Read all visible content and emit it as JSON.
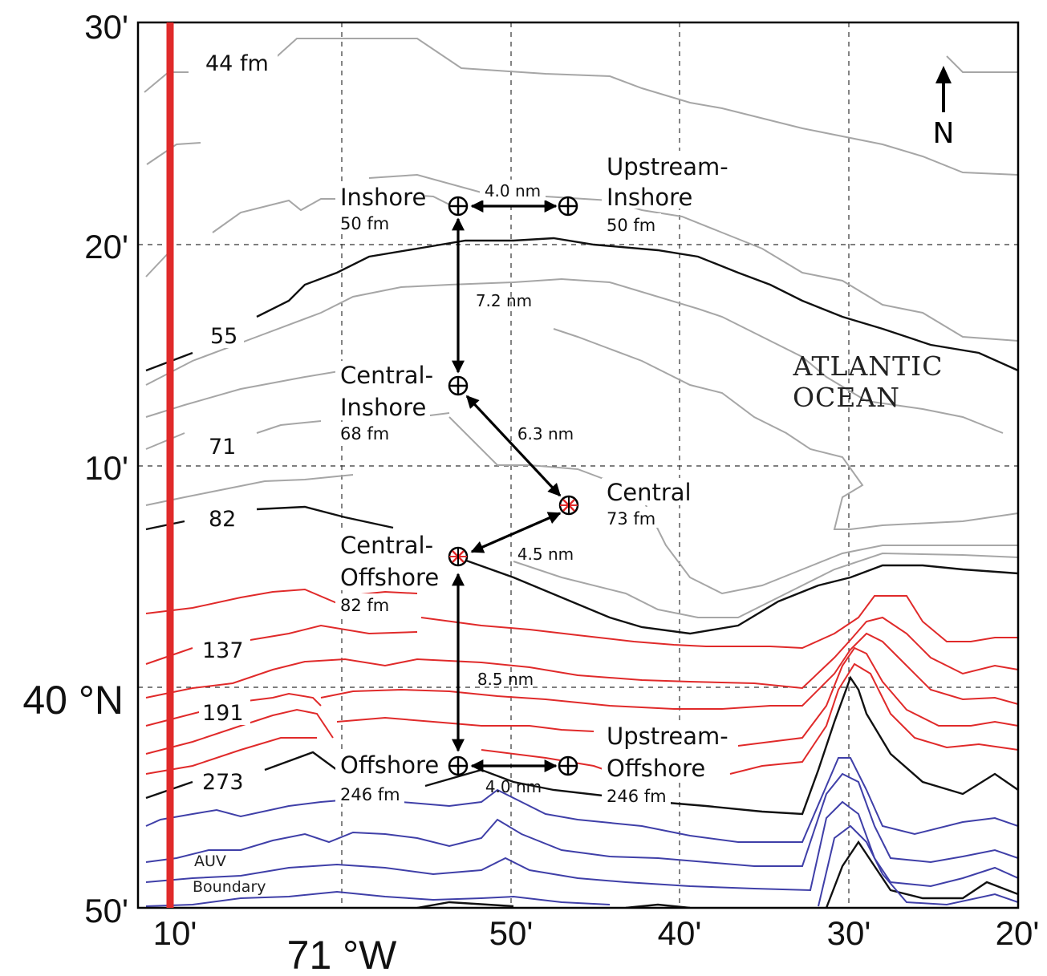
{
  "map": {
    "latitude_labels": [
      "30'",
      "20'",
      "10'",
      "40 °N",
      "50'"
    ],
    "longitude_labels": [
      "10'",
      "71 °W",
      "50'",
      "40'",
      "30'",
      "20'"
    ],
    "north_arrow": "N",
    "ocean_label": [
      "ATLANTIC",
      "OCEAN"
    ],
    "auv_boundary_label": [
      "AUV",
      "Boundary"
    ],
    "depth_contour_labels": {
      "fm44": "44 fm",
      "fm55": "55",
      "fm71": "71",
      "fm82": "82",
      "fm137": "137",
      "fm191": "191",
      "fm273": "273"
    },
    "sites": {
      "inshore": {
        "name": "Inshore",
        "depth": "50 fm"
      },
      "upstream_inshore": {
        "name_line1": "Upstream-",
        "name_line2": "Inshore",
        "depth": "50 fm"
      },
      "central_inshore": {
        "name_line1": "Central-",
        "name_line2": "Inshore",
        "depth": "68 fm"
      },
      "central": {
        "name": "Central",
        "depth": "73 fm"
      },
      "central_offshore": {
        "name_line1": "Central-",
        "name_line2": "Offshore",
        "depth": "82 fm"
      },
      "offshore": {
        "name": "Offshore",
        "depth": "246 fm"
      },
      "upstream_offshore": {
        "name_line1": "Upstream-",
        "name_line2": "Offshore",
        "depth": "246 fm"
      }
    },
    "distances": {
      "inshore_upstream": "4.0 nm",
      "inshore_central_inshore": "7.2 nm",
      "central_inshore_central": "6.3 nm",
      "central_central_offshore": "4.5 nm",
      "central_offshore_offshore": "8.5 nm",
      "offshore_upstream": "4.0 nm"
    },
    "colors": {
      "gray_contour": "#a6a6a6",
      "black_contour": "#111111",
      "red_contour": "#e02a2a",
      "blue_contour": "#3f3fa8",
      "auv_boundary": "#e02a2a"
    }
  }
}
